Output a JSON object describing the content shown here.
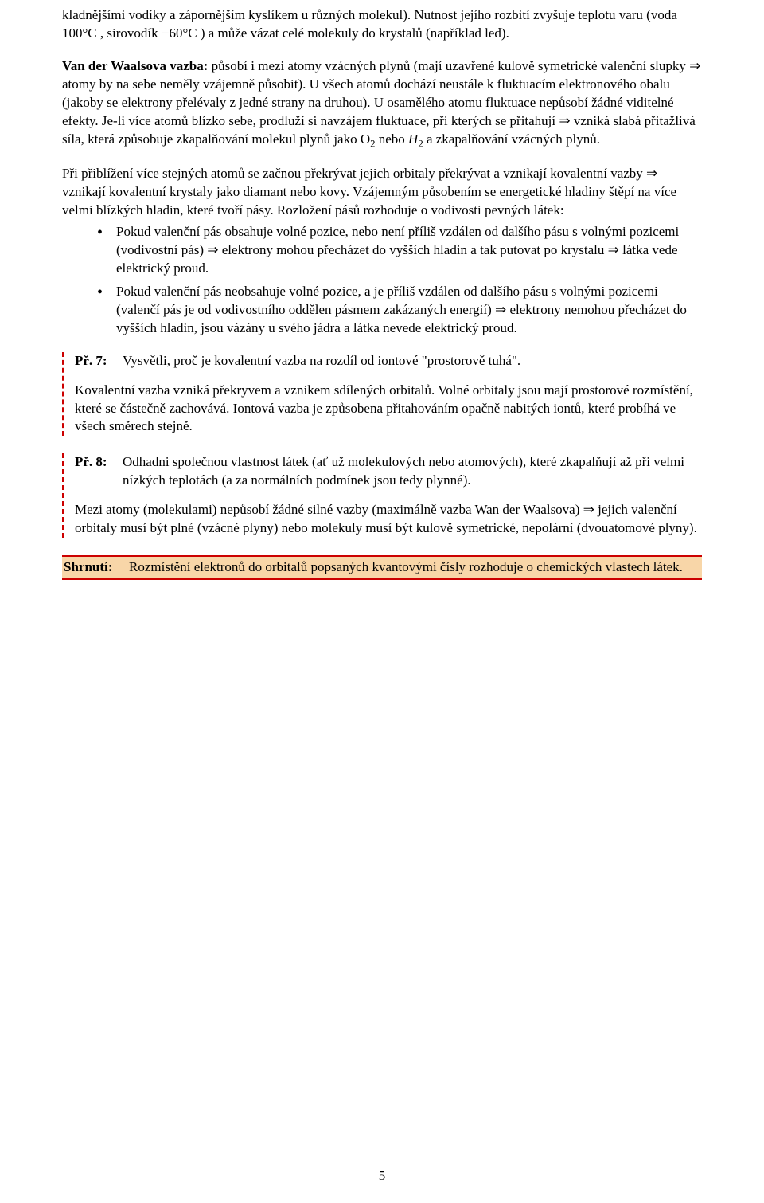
{
  "para1": "kladnějšími vodíky a zápornějším kyslíkem u různých molekul). Nutnost jejího rozbití zvyšuje teplotu varu (voda 100°C , sirovodík −60°C ) a může vázat celé molekuly do krystalů (například led).",
  "para2_bold": "Van der Waalsova vazba:",
  "para2_rest": " působí i mezi atomy vzácných plynů (mají uzavřené kulově symetrické valenční slupky ⇒ atomy by na sebe neměly vzájemně působit). U všech atomů dochází neustále k fluktuacím elektronového obalu (jakoby se elektrony přelévaly z jedné strany na druhou). U osamělého atomu fluktuace nepůsobí žádné viditelné efekty. Je-li více atomů blízko sebe, prodluží si navzájem fluktuace, při kterých se přitahují ⇒ vzniká slabá přitažlivá síla, která způsobuje zkapalňování molekul plynů jako O",
  "para2_sub1": "2",
  "para2_after1": " nebo ",
  "para2_h": "H",
  "para2_sub2": "2",
  "para2_after2": " a zkapalňování vzácných plynů.",
  "para3": "Při přiblížení více stejných atomů se začnou překrývat jejich orbitaly překrývat a vznikají kovalentní vazby ⇒ vznikají kovalentní krystaly jako diamant nebo kovy. Vzájemným působením se energetické hladiny štěpí na více velmi blízkých hladin, které tvoří pásy. Rozložení pásů rozhoduje o vodivosti pevných látek:",
  "bullets": [
    "Pokud valenční pás obsahuje volné pozice, nebo není příliš vzdálen od dalšího pásu s volnými pozicemi (vodivostní pás) ⇒ elektrony mohou přecházet do vyšších hladin a tak putovat po krystalu ⇒ látka vede elektrický proud.",
    "Pokud valenční pás neobsahuje volné pozice, a je příliš vzdálen od dalšího pásu s volnými pozicemi (valenčí pás je od vodivostního oddělen pásmem zakázaných energií) ⇒ elektrony nemohou přecházet do vyšších hladin, jsou vázány u svého jádra a látka nevede elektrický proud."
  ],
  "ex7": {
    "label": "Př. 7:",
    "question": "Vysvětli, proč je kovalentní vazba na rozdíl od iontové \"prostorově tuhá\".",
    "answer": "Kovalentní vazba vzniká překryvem a vznikem sdílených orbitalů. Volné orbitaly jsou mají prostorové rozmístění, které se částečně zachovává. Iontová vazba je způsobena přitahováním opačně nabitých iontů, které probíhá ve všech směrech stejně."
  },
  "ex8": {
    "label": "Př. 8:",
    "question": "Odhadni společnou vlastnost látek (ať už molekulových nebo atomových), které zkapalňují až při velmi nízkých teplotách (a za normálních podmínek jsou tedy plynné).",
    "answer": "Mezi atomy (molekulami) nepůsobí žádné silné vazby (maximálně vazba Wan der Waalsova) ⇒ jejich valenční orbitaly musí být plné (vzácné plyny) nebo molekuly musí být kulově symetrické, nepolární (dvouatomové plyny)."
  },
  "summary": {
    "label": "Shrnutí:",
    "text": "Rozmístění elektronů do orbitalů popsaných kvantovými čísly rozhoduje o chemických vlastech látek."
  },
  "page_number": "5",
  "colors": {
    "dashed_border": "#c00000",
    "summary_border": "#c00000",
    "summary_bg": "#f8d6a8"
  }
}
